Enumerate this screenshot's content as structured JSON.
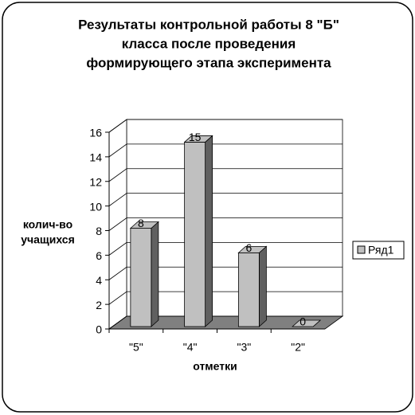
{
  "chart_data": {
    "type": "bar3d",
    "title": [
      "Результаты контрольной работы 8 \"Б\"",
      "класса после проведения",
      "формирующего этапа эксперимента"
    ],
    "ylabel": [
      "колич-во",
      "учащихся"
    ],
    "xlabel": "отметки",
    "categories": [
      "\"5\"",
      "\"4\"",
      "\"3\"",
      "\"2\""
    ],
    "series": [
      {
        "name": "Ряд1",
        "color": "#c0c0c0",
        "values": [
          8,
          15,
          6,
          0
        ]
      }
    ],
    "ylim": [
      0,
      16
    ],
    "yticks": [
      0,
      2,
      4,
      6,
      8,
      10,
      12,
      14,
      16
    ],
    "grid": true,
    "legend": "right"
  }
}
